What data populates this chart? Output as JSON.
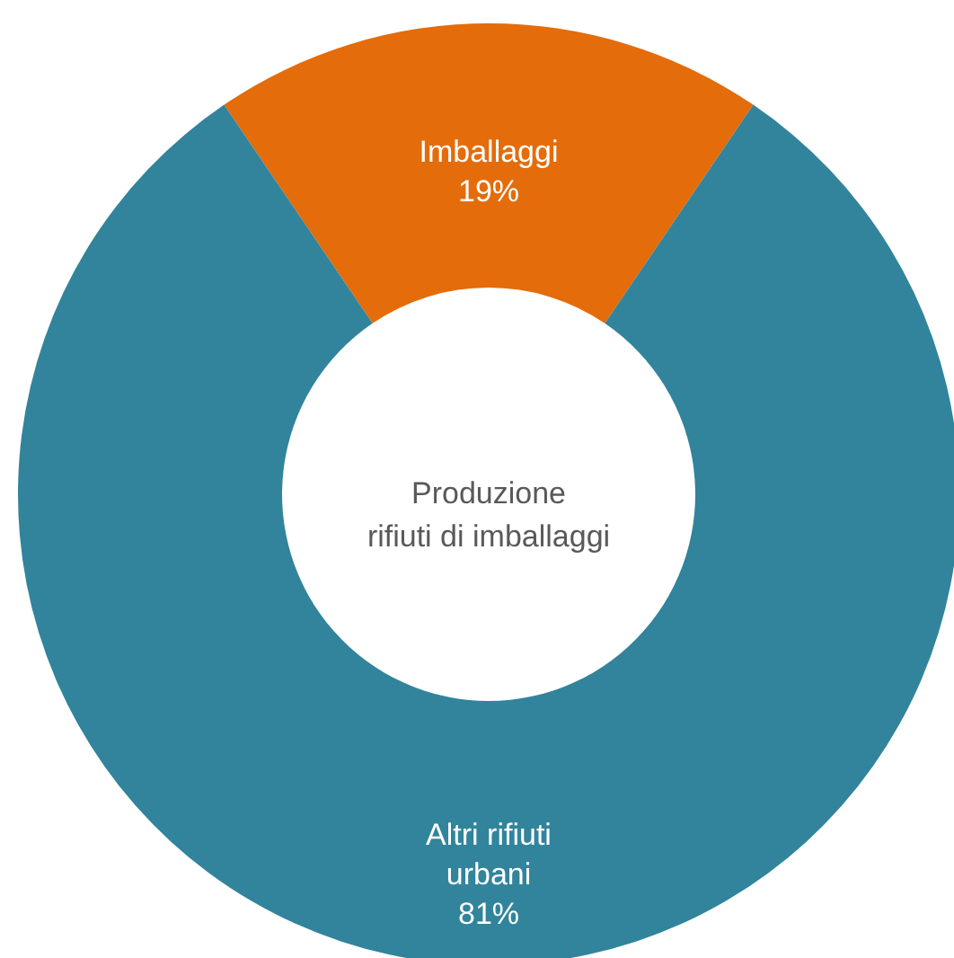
{
  "chart_data": {
    "type": "donut",
    "categories": [
      "Imballaggi",
      "Altri rifiuti\nurbani"
    ],
    "values": [
      19,
      81
    ],
    "colors": [
      "#e46c0a",
      "#31849b"
    ],
    "value_labels": [
      "19%",
      "81%"
    ],
    "annotations": [
      "Produzione\nrifiuti di imballaggi"
    ]
  }
}
